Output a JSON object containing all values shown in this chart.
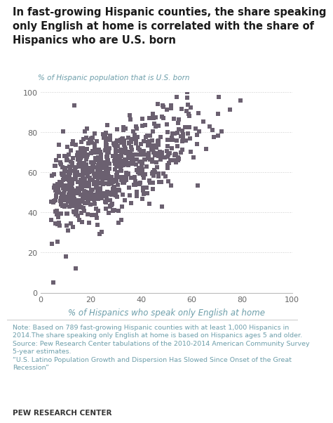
{
  "title": "In fast-growing Hispanic counties, the share speaking\nonly English at home is correlated with the share of\nHispanics who are U.S. born",
  "ylabel": "% of Hispanic population that is U.S. born",
  "xlabel": "% of Hispanics who speak only English at home",
  "xlim": [
    0,
    100
  ],
  "ylim": [
    0,
    100
  ],
  "xticks": [
    0,
    20,
    40,
    60,
    80,
    100
  ],
  "yticks": [
    0,
    20,
    40,
    60,
    80,
    100
  ],
  "marker_color": "#6b6070",
  "marker_size": 16,
  "note_text": "Note: Based on 789 fast-growing Hispanic counties with at least 1,000 Hispanics in\n2014.The share speaking only English at home is based on Hispanics ages 5 and older.\nSource: Pew Research Center tabulations of the 2010-2014 American Community Survey\n5-year estimates.\n“U.S. Latino Population Growth and Dispersion Has Slowed Since Onset of the Great\nRecession”",
  "note_color": "#6d9eaa",
  "pew_label": "PEW RESEARCH CENTER",
  "pew_color": "#333333",
  "background_color": "#ffffff",
  "grid_color": "#cccccc",
  "title_color": "#1a1a1a",
  "axis_label_color": "#888888",
  "n_points": 789,
  "seed": 42
}
